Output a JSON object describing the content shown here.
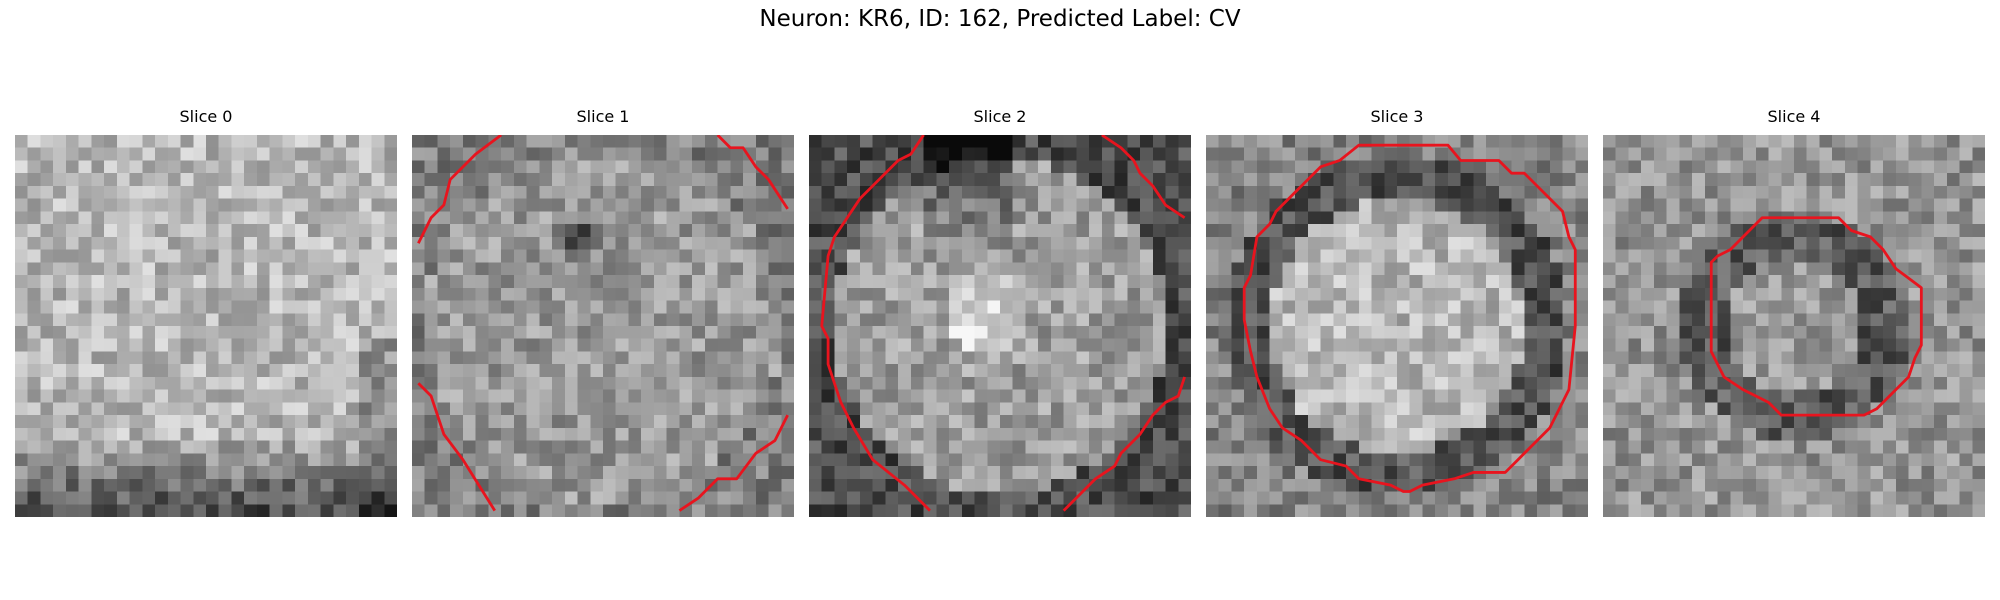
{
  "figure": {
    "title": "Neuron: KR6, ID: 162, Predicted Label: CV"
  },
  "panels": [
    {
      "title": "Slice 0"
    },
    {
      "title": "Slice 1"
    },
    {
      "title": "Slice 2"
    },
    {
      "title": "Slice 3"
    },
    {
      "title": "Slice 4"
    }
  ],
  "colors": {
    "contour": "#e8141e",
    "background": "#ffffff"
  }
}
